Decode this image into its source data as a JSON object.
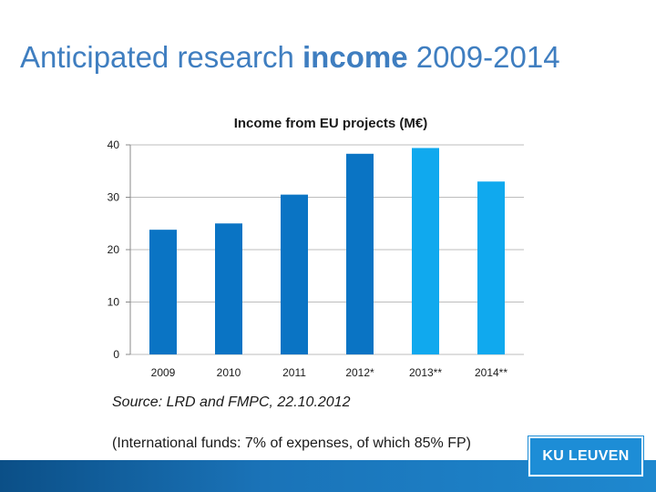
{
  "slide": {
    "title_prefix": "Anticipated research ",
    "title_emphasis": "income",
    "title_suffix": " 2009-2014"
  },
  "chart_data": {
    "type": "bar",
    "title": "Income from EU projects (M€)",
    "categories": [
      "2009",
      "2010",
      "2011",
      "2012*",
      "2013**",
      "2014**"
    ],
    "values": [
      23.8,
      25.0,
      30.5,
      38.3,
      39.4,
      33.0
    ],
    "ylim": [
      0,
      40
    ],
    "yticks": [
      0,
      10,
      20,
      30,
      40
    ],
    "grid": true,
    "colors": [
      "#0a74c4",
      "#0a74c4",
      "#0a74c4",
      "#0a74c4",
      "#10a9ee",
      "#10a9ee"
    ]
  },
  "source_text": "Source: LRD and FMPC, 22.10.2012",
  "note_text": "(International funds: 7% of expenses, of which 85% FP)",
  "logo_text": "KU LEUVEN"
}
